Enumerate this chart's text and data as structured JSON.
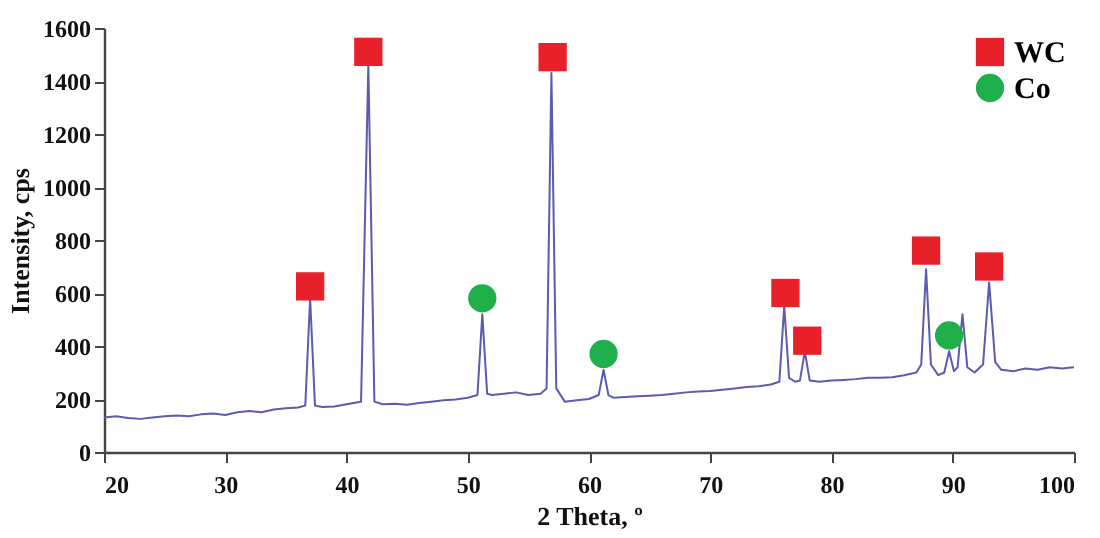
{
  "chart_data": {
    "type": "line",
    "xlabel": "2 Theta, º",
    "ylabel": "Intensity, cps",
    "xlim": [
      20,
      100
    ],
    "xticks": [
      20,
      30,
      40,
      50,
      60,
      70,
      80,
      90,
      100
    ],
    "ylim": [
      0,
      1600
    ],
    "yticks": [
      0,
      200,
      400,
      600,
      800,
      1000,
      1200,
      1400,
      1600
    ],
    "grid": false,
    "legend": "top right",
    "series": [
      {
        "type": "line",
        "color": "#5b5bb0",
        "marker": "none",
        "x": [
          20,
          21,
          22,
          23,
          24,
          25,
          26,
          27,
          28,
          29,
          30,
          31,
          32,
          33,
          34,
          35,
          36,
          36.6,
          37.0,
          37.4,
          38,
          39,
          40,
          41.2,
          41.8,
          42.3,
          43,
          44,
          45,
          46,
          47,
          48,
          49,
          50,
          50.8,
          51.2,
          51.6,
          52,
          53,
          54,
          55,
          56,
          56.5,
          56.9,
          57.3,
          58,
          59,
          60,
          60.8,
          61.2,
          61.6,
          62,
          63,
          64,
          65,
          66,
          67,
          68,
          69,
          70,
          71,
          72,
          73,
          74,
          75,
          75.7,
          76.1,
          76.5,
          77,
          77.4,
          77.8,
          78.2,
          79,
          80,
          81,
          82,
          83,
          84,
          85,
          86,
          87,
          87.4,
          87.8,
          88.2,
          88.8,
          89.3,
          89.7,
          90.1,
          90.4,
          90.8,
          91.2,
          91.8,
          92.5,
          93.0,
          93.5,
          94,
          95,
          96,
          97,
          98,
          99,
          100
        ],
        "values": [
          130,
          135,
          128,
          125,
          130,
          135,
          138,
          135,
          142,
          145,
          140,
          150,
          155,
          150,
          160,
          165,
          168,
          175,
          580,
          175,
          170,
          172,
          180,
          190,
          1460,
          190,
          180,
          182,
          178,
          185,
          190,
          195,
          198,
          205,
          215,
          520,
          220,
          215,
          220,
          225,
          215,
          220,
          240,
          1430,
          240,
          190,
          195,
          200,
          215,
          310,
          215,
          205,
          208,
          210,
          212,
          215,
          220,
          225,
          228,
          230,
          235,
          240,
          245,
          248,
          255,
          265,
          550,
          280,
          265,
          270,
          380,
          270,
          265,
          270,
          272,
          275,
          280,
          280,
          282,
          290,
          300,
          330,
          690,
          330,
          290,
          300,
          380,
          305,
          320,
          520,
          320,
          300,
          330,
          640,
          340,
          310,
          305,
          315,
          310,
          320,
          315,
          320
        ]
      },
      {
        "type": "scatter",
        "name": "WC",
        "color": "#e8202a",
        "marker": "square",
        "x": [
          37.0,
          41.8,
          57.0,
          76.2,
          78.0,
          87.8,
          93.0
        ],
        "values": [
          625,
          1510,
          1490,
          600,
          420,
          760,
          700
        ]
      },
      {
        "type": "scatter",
        "name": "Co",
        "color": "#1fb04b",
        "marker": "circle",
        "x": [
          51.2,
          61.2,
          89.7
        ],
        "values": [
          580,
          370,
          440
        ]
      }
    ]
  }
}
